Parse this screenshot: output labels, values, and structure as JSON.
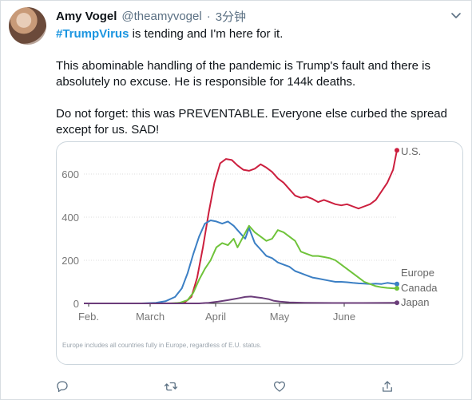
{
  "tweet": {
    "display_name": "Amy Vogel",
    "handle": "@theamyvogel",
    "separator": "·",
    "time": "3分钟",
    "hashtag": "#TrumpVirus",
    "line1_rest": " is tending and I'm here for it.",
    "paragraph2": "This abominable handling of the pandemic is Trump's fault and there is absolutely no excuse. He is responsible for 144k deaths.",
    "paragraph3": "Do not forget: this was PREVENTABLE. Everyone else curbed the spread except for us. SAD!"
  },
  "chart_data": {
    "type": "line",
    "x": [
      "Feb.",
      "March",
      "April",
      "May",
      "June"
    ],
    "ylim": [
      0,
      700
    ],
    "yticks": [
      0,
      200,
      400,
      600
    ],
    "footnote": "Europe includes all countries fully in Europe, regardless of E.U. status.",
    "series": [
      {
        "name": "U.S.",
        "color": "#cc1f3e",
        "points": [
          [
            0,
            0
          ],
          [
            80,
            0
          ],
          [
            95,
            1
          ],
          [
            105,
            5
          ],
          [
            112,
            30
          ],
          [
            118,
            120
          ],
          [
            124,
            260
          ],
          [
            130,
            420
          ],
          [
            136,
            560
          ],
          [
            142,
            650
          ],
          [
            148,
            670
          ],
          [
            154,
            665
          ],
          [
            160,
            640
          ],
          [
            166,
            620
          ],
          [
            172,
            615
          ],
          [
            178,
            625
          ],
          [
            184,
            645
          ],
          [
            190,
            630
          ],
          [
            196,
            610
          ],
          [
            202,
            580
          ],
          [
            208,
            560
          ],
          [
            214,
            530
          ],
          [
            220,
            500
          ],
          [
            226,
            490
          ],
          [
            232,
            495
          ],
          [
            238,
            485
          ],
          [
            244,
            470
          ],
          [
            250,
            480
          ],
          [
            256,
            470
          ],
          [
            262,
            460
          ],
          [
            268,
            455
          ],
          [
            274,
            460
          ],
          [
            280,
            450
          ],
          [
            286,
            440
          ],
          [
            292,
            450
          ],
          [
            298,
            460
          ],
          [
            304,
            480
          ],
          [
            310,
            520
          ],
          [
            316,
            560
          ],
          [
            322,
            620
          ],
          [
            326,
            710
          ]
        ]
      },
      {
        "name": "Europe",
        "color": "#3b7fc4",
        "points": [
          [
            0,
            0
          ],
          [
            60,
            0
          ],
          [
            75,
            3
          ],
          [
            85,
            10
          ],
          [
            95,
            30
          ],
          [
            102,
            70
          ],
          [
            108,
            140
          ],
          [
            114,
            230
          ],
          [
            120,
            310
          ],
          [
            126,
            370
          ],
          [
            132,
            385
          ],
          [
            138,
            380
          ],
          [
            144,
            370
          ],
          [
            150,
            380
          ],
          [
            156,
            360
          ],
          [
            162,
            330
          ],
          [
            168,
            300
          ],
          [
            172,
            350
          ],
          [
            178,
            280
          ],
          [
            184,
            250
          ],
          [
            190,
            220
          ],
          [
            196,
            210
          ],
          [
            202,
            190
          ],
          [
            208,
            180
          ],
          [
            214,
            170
          ],
          [
            220,
            150
          ],
          [
            226,
            140
          ],
          [
            232,
            130
          ],
          [
            238,
            120
          ],
          [
            244,
            115
          ],
          [
            250,
            110
          ],
          [
            256,
            105
          ],
          [
            262,
            100
          ],
          [
            268,
            100
          ],
          [
            274,
            98
          ],
          [
            280,
            95
          ],
          [
            286,
            93
          ],
          [
            292,
            92
          ],
          [
            298,
            90
          ],
          [
            304,
            92
          ],
          [
            310,
            90
          ],
          [
            316,
            95
          ],
          [
            322,
            92
          ],
          [
            326,
            90
          ]
        ]
      },
      {
        "name": "Canada",
        "color": "#6fc33a",
        "points": [
          [
            0,
            0
          ],
          [
            90,
            0
          ],
          [
            100,
            3
          ],
          [
            108,
            15
          ],
          [
            114,
            50
          ],
          [
            120,
            110
          ],
          [
            126,
            160
          ],
          [
            132,
            200
          ],
          [
            138,
            260
          ],
          [
            144,
            280
          ],
          [
            150,
            270
          ],
          [
            156,
            300
          ],
          [
            160,
            260
          ],
          [
            166,
            310
          ],
          [
            172,
            360
          ],
          [
            178,
            330
          ],
          [
            184,
            310
          ],
          [
            190,
            290
          ],
          [
            196,
            300
          ],
          [
            202,
            340
          ],
          [
            208,
            330
          ],
          [
            214,
            310
          ],
          [
            220,
            290
          ],
          [
            226,
            240
          ],
          [
            232,
            230
          ],
          [
            238,
            220
          ],
          [
            244,
            220
          ],
          [
            250,
            215
          ],
          [
            256,
            210
          ],
          [
            262,
            200
          ],
          [
            268,
            180
          ],
          [
            274,
            160
          ],
          [
            280,
            140
          ],
          [
            286,
            120
          ],
          [
            292,
            100
          ],
          [
            298,
            90
          ],
          [
            304,
            80
          ],
          [
            310,
            75
          ],
          [
            316,
            72
          ],
          [
            322,
            70
          ],
          [
            326,
            70
          ]
        ]
      },
      {
        "name": "Japan",
        "color": "#6b3d7a",
        "points": [
          [
            0,
            0
          ],
          [
            120,
            0
          ],
          [
            130,
            3
          ],
          [
            140,
            8
          ],
          [
            150,
            15
          ],
          [
            156,
            20
          ],
          [
            162,
            25
          ],
          [
            168,
            30
          ],
          [
            174,
            32
          ],
          [
            180,
            28
          ],
          [
            186,
            25
          ],
          [
            192,
            20
          ],
          [
            198,
            12
          ],
          [
            204,
            8
          ],
          [
            214,
            5
          ],
          [
            230,
            3
          ],
          [
            260,
            2
          ],
          [
            290,
            2
          ],
          [
            326,
            3
          ]
        ]
      }
    ]
  },
  "actions": {
    "reply": "reply-icon",
    "retweet": "retweet-icon",
    "like": "heart-icon",
    "share": "share-icon"
  }
}
